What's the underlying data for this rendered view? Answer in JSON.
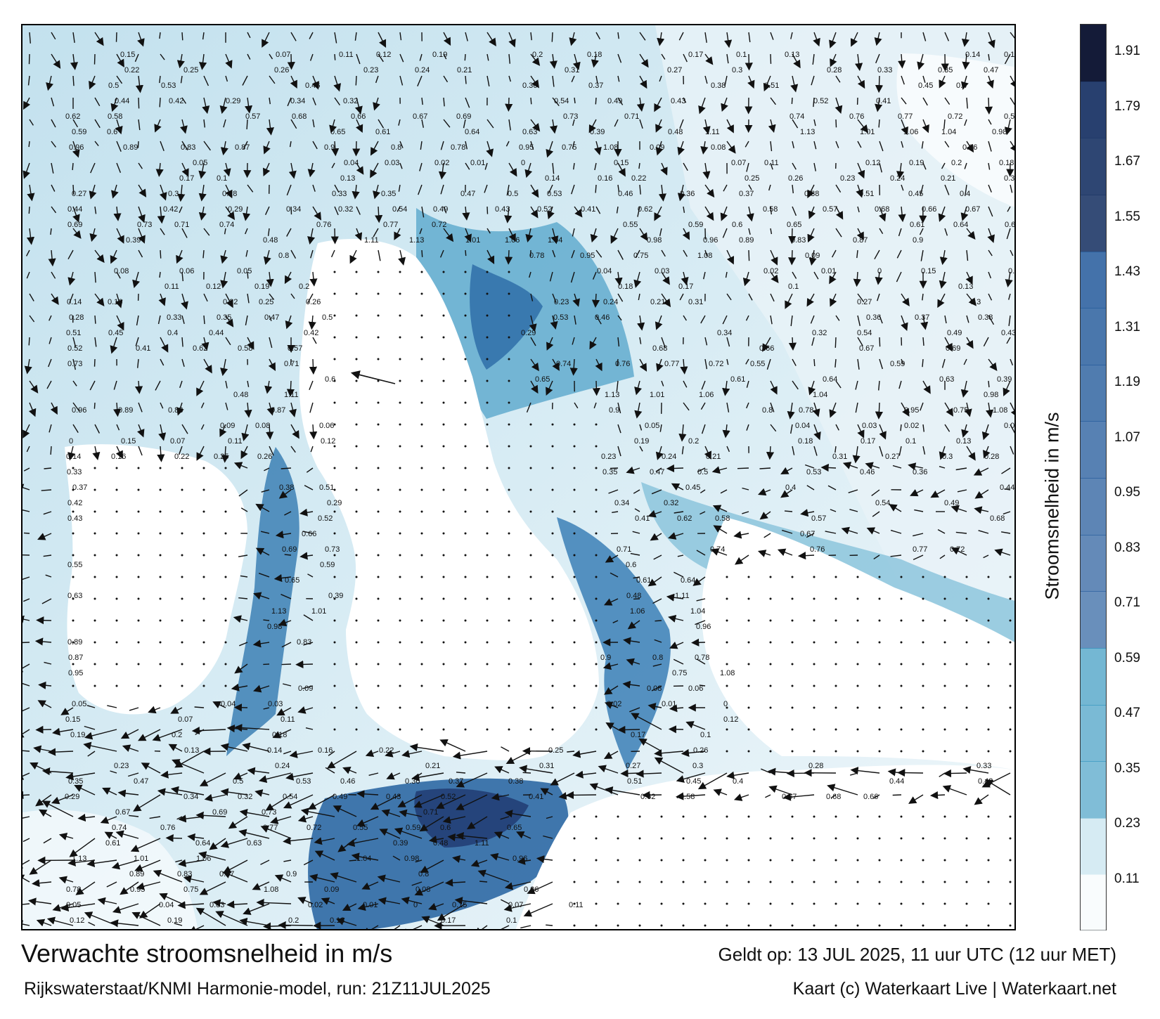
{
  "map": {
    "title": "Verwachte stroomsnelheid in m/s",
    "valid_time": "Geldt op: 13 JUL 2025, 11 uur UTC (12 uur MET)",
    "model_run": "Rijkswaterstaat/KNMI Harmonie-model, run: 21Z11JUL2025",
    "credit": "Kaart (c) Waterkaart Live | Waterkaart.net"
  },
  "legend": {
    "title": "Stroomsnelheid in m/s",
    "ticks": [
      "1.91",
      "1.79",
      "1.67",
      "1.55",
      "1.43",
      "1.31",
      "1.19",
      "1.07",
      "0.95",
      "0.83",
      "0.71",
      "0.59",
      "0.47",
      "0.35",
      "0.23",
      "0.11"
    ],
    "colors": {
      "lowest": "#f4f9fc",
      "low": "#b9dcea",
      "mid": "#2f93bd",
      "high": "#2a5f9e",
      "very_high": "#213a6a",
      "highest": "#141b38",
      "land": "#ffffff"
    }
  },
  "value_labels": [
    {
      "text": "0.15"
    },
    {
      "text": "0.07"
    },
    {
      "text": "0.11"
    },
    {
      "text": "0.12"
    },
    {
      "text": "0.19"
    },
    {
      "text": "0.2"
    },
    {
      "text": "0.18"
    },
    {
      "text": "0.17"
    },
    {
      "text": "0.1"
    },
    {
      "text": "0.13"
    },
    {
      "text": "0.14"
    },
    {
      "text": "0.16"
    },
    {
      "text": "0.22"
    },
    {
      "text": "0.25"
    },
    {
      "text": "0.26"
    },
    {
      "text": "0.23"
    },
    {
      "text": "0.24"
    },
    {
      "text": "0.21"
    },
    {
      "text": "0.31"
    },
    {
      "text": "0.27"
    },
    {
      "text": "0.3"
    },
    {
      "text": "0.28"
    },
    {
      "text": "0.33"
    },
    {
      "text": "0.35"
    },
    {
      "text": "0.47"
    },
    {
      "text": "0.5"
    },
    {
      "text": "0.53"
    },
    {
      "text": "0.46"
    },
    {
      "text": "0.36"
    },
    {
      "text": "0.37"
    },
    {
      "text": "0.38"
    },
    {
      "text": "0.51"
    },
    {
      "text": "0.45"
    },
    {
      "text": "0.4"
    },
    {
      "text": "0.44"
    },
    {
      "text": "0.42"
    },
    {
      "text": "0.29"
    },
    {
      "text": "0.34"
    },
    {
      "text": "0.32"
    },
    {
      "text": "0.54"
    },
    {
      "text": "0.49"
    },
    {
      "text": "0.43"
    },
    {
      "text": "0.52"
    },
    {
      "text": "0.41"
    },
    {
      "text": "0.62"
    },
    {
      "text": "0.58"
    },
    {
      "text": "0.57"
    },
    {
      "text": "0.68"
    },
    {
      "text": "0.66"
    },
    {
      "text": "0.67"
    },
    {
      "text": "0.69"
    },
    {
      "text": "0.73"
    },
    {
      "text": "0.71"
    },
    {
      "text": "0.74"
    },
    {
      "text": "0.76"
    },
    {
      "text": "0.77"
    },
    {
      "text": "0.72"
    },
    {
      "text": "0.55"
    },
    {
      "text": "0.59"
    },
    {
      "text": "0.6"
    },
    {
      "text": "0.65"
    },
    {
      "text": "0.61"
    },
    {
      "text": "0.64"
    },
    {
      "text": "0.63"
    },
    {
      "text": "0.39"
    },
    {
      "text": "0.48"
    },
    {
      "text": "1.11"
    },
    {
      "text": "1.13"
    },
    {
      "text": "1.01"
    },
    {
      "text": "1.06"
    },
    {
      "text": "1.04"
    },
    {
      "text": "0.98"
    },
    {
      "text": "0.96"
    },
    {
      "text": "0.89"
    },
    {
      "text": "0.83"
    },
    {
      "text": "0.87"
    },
    {
      "text": "0.9"
    },
    {
      "text": "0.8"
    },
    {
      "text": "0.78"
    },
    {
      "text": "0.95"
    },
    {
      "text": "0.75"
    },
    {
      "text": "1.08"
    },
    {
      "text": "0.09"
    },
    {
      "text": "0.08"
    },
    {
      "text": "0.06"
    },
    {
      "text": "0.05"
    },
    {
      "text": "0.04"
    },
    {
      "text": "0.03"
    },
    {
      "text": "0.02"
    },
    {
      "text": "0.01"
    },
    {
      "text": "0"
    }
  ]
}
